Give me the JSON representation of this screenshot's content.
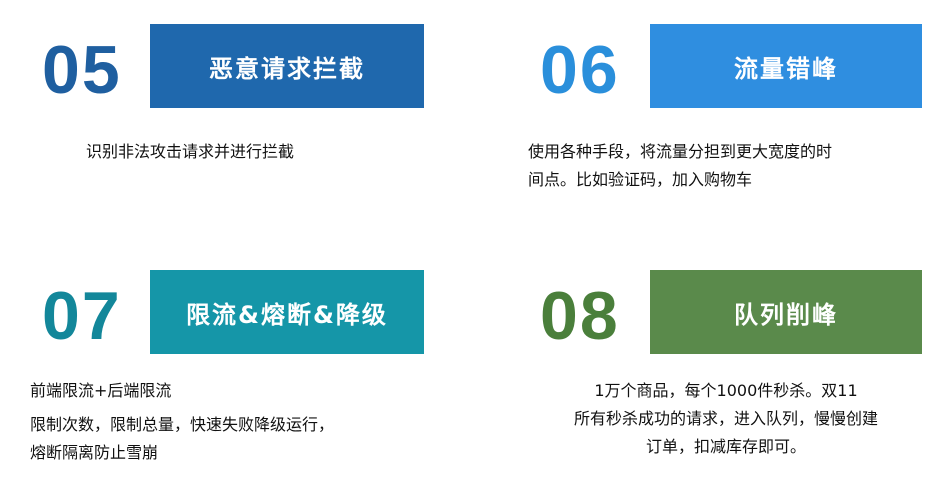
{
  "cards": [
    {
      "number": "05",
      "title": "恶意请求拦截",
      "lines": [
        "识别非法攻击请求并进行拦截"
      ],
      "number_color": "#1f5fa0",
      "banner_color": "#1f68ad"
    },
    {
      "number": "06",
      "title": "流量错峰",
      "lines": [
        "使用各种手段，将流量分担到更大宽度的时",
        "间点。比如验证码，加入购物车"
      ],
      "number_color": "#2a8fdb",
      "banner_color": "#2f8ee0"
    },
    {
      "number": "07",
      "title": "限流&熔断&降级",
      "lines": [
        "前端限流+后端限流",
        "限制次数，限制总量，快速失败降级运行，",
        "熔断隔离防止雪崩"
      ],
      "number_color": "#13879a",
      "banner_color": "#1596a8"
    },
    {
      "number": "08",
      "title": "队列削峰",
      "lines": [
        "1万个商品，每个1000件秒杀。双11",
        "所有秒杀成功的请求，进入队列，慢慢创建",
        "订单，扣减库存即可。"
      ],
      "number_color": "#4a7f3b",
      "banner_color": "#5a8a4b"
    }
  ]
}
